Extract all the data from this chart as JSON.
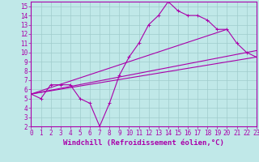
{
  "xlabel": "Windchill (Refroidissement éolien,°C)",
  "xlim": [
    0,
    23
  ],
  "ylim": [
    2,
    15.5
  ],
  "xticks": [
    0,
    1,
    2,
    3,
    4,
    5,
    6,
    7,
    8,
    9,
    10,
    11,
    12,
    13,
    14,
    15,
    16,
    17,
    18,
    19,
    20,
    21,
    22,
    23
  ],
  "yticks": [
    2,
    3,
    4,
    5,
    6,
    7,
    8,
    9,
    10,
    11,
    12,
    13,
    14,
    15
  ],
  "background_color": "#c0e8e8",
  "grid_color": "#a0cccc",
  "line_color": "#aa00aa",
  "line1_x": [
    0,
    1,
    2,
    3,
    4,
    5,
    6,
    7,
    8,
    9,
    10,
    11,
    12,
    13,
    14,
    15,
    16,
    17,
    18,
    19,
    20,
    21,
    22,
    23
  ],
  "line1_y": [
    5.5,
    5.0,
    6.5,
    6.5,
    6.5,
    5.0,
    4.5,
    2.0,
    4.5,
    7.5,
    9.5,
    11.0,
    13.0,
    14.0,
    15.5,
    14.5,
    14.0,
    14.0,
    13.5,
    12.5,
    12.5,
    11.0,
    10.0,
    9.5
  ],
  "line2_x": [
    0,
    23
  ],
  "line2_y": [
    5.5,
    9.5
  ],
  "line3_x": [
    0,
    20
  ],
  "line3_y": [
    5.5,
    12.5
  ],
  "line4_x": [
    0,
    23
  ],
  "line4_y": [
    5.5,
    10.2
  ],
  "font_size_xlabel": 6.5,
  "font_size_tick": 5.5
}
